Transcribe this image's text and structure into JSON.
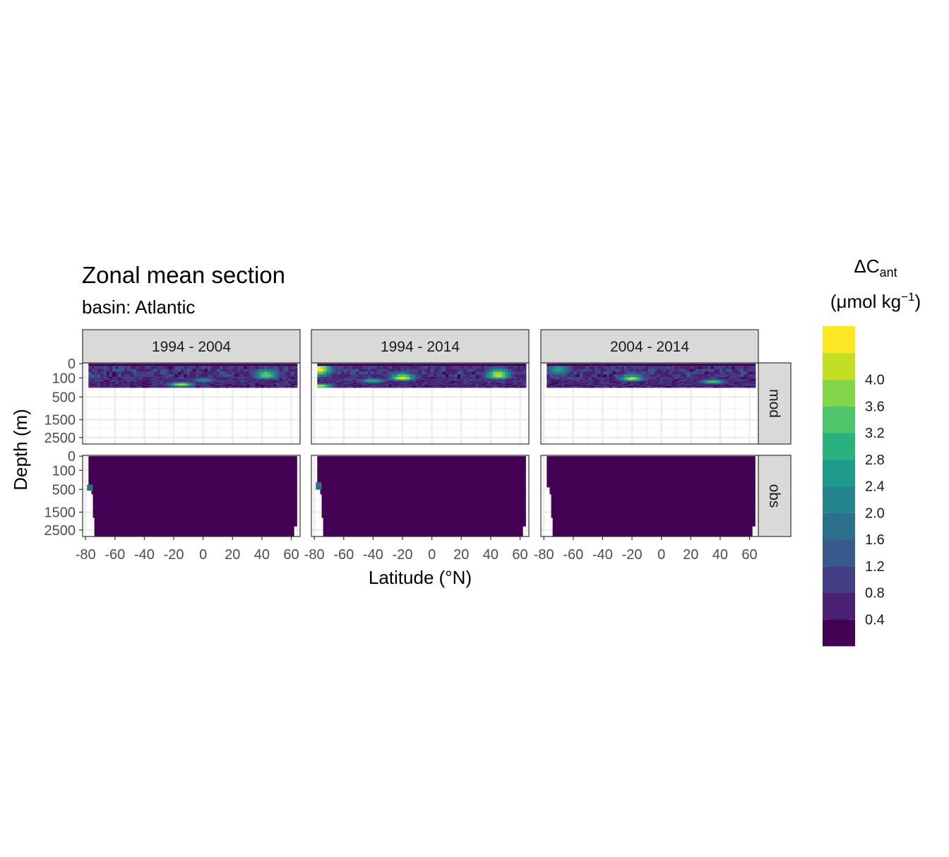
{
  "chart_data": {
    "type": "heatmap",
    "title": "Zonal mean section",
    "subtitle": "basin: Atlantic",
    "xlabel": "Latitude (°N)",
    "ylabel": "Depth (m)",
    "xlim": [
      -82,
      66
    ],
    "x_ticks": [
      -80,
      -60,
      -40,
      -20,
      0,
      20,
      40,
      60
    ],
    "x_tick_labels": [
      "-80",
      "-60",
      "-40",
      "-20",
      "0",
      "20",
      "40",
      "60"
    ],
    "y_ticks": [
      0,
      100,
      500,
      1500,
      2500
    ],
    "y_tick_labels": [
      "0",
      "100",
      "500",
      "1500",
      "2500"
    ],
    "y_reversed": true,
    "column_facets": [
      "1994 - 2004",
      "1994 - 2014",
      "2004 - 2014"
    ],
    "row_facets": [
      "mod",
      "obs"
    ],
    "grid": true,
    "colorbar": {
      "title_main": "ΔC",
      "title_sub": "ant",
      "unit_open": "(μmol kg",
      "unit_sup": "−1",
      "unit_close": ")",
      "levels": [
        {
          "color": "#440154",
          "label": "0.4"
        },
        {
          "color": "#482173",
          "label": "0.8"
        },
        {
          "color": "#433E85",
          "label": "1.2"
        },
        {
          "color": "#38598C",
          "label": "1.6"
        },
        {
          "color": "#2D708E",
          "label": "2.0"
        },
        {
          "color": "#25858E",
          "label": "2.4"
        },
        {
          "color": "#1E9B8A",
          "label": "2.8"
        },
        {
          "color": "#2BB07F",
          "label": "3.2"
        },
        {
          "color": "#51C56A",
          "label": "3.6"
        },
        {
          "color": "#85D54A",
          "label": "4.0"
        },
        {
          "color": "#C2DF23",
          "label": ""
        },
        {
          "color": "#FDE725",
          "label": ""
        }
      ]
    },
    "panels": [
      {
        "col": 0,
        "row": "mod",
        "data_depth_max": 300,
        "data_lat_min": -78,
        "data_lat_max": 64,
        "hotspots": [
          {
            "lat": -15,
            "depth": 240,
            "level": 10
          },
          {
            "lat": 43,
            "depth": 80,
            "level": 8
          },
          {
            "lat": 0,
            "depth": 150,
            "level": 5
          }
        ]
      },
      {
        "col": 1,
        "row": "mod",
        "data_depth_max": 300,
        "data_lat_min": -78,
        "data_lat_max": 64,
        "hotspots": [
          {
            "lat": -76,
            "depth": 40,
            "level": 11
          },
          {
            "lat": -20,
            "depth": 110,
            "level": 11
          },
          {
            "lat": 45,
            "depth": 80,
            "level": 10
          },
          {
            "lat": -76,
            "depth": 270,
            "level": 10
          },
          {
            "lat": -40,
            "depth": 160,
            "level": 7
          }
        ]
      },
      {
        "col": 2,
        "row": "mod",
        "data_depth_max": 300,
        "data_lat_min": -78,
        "data_lat_max": 64,
        "hotspots": [
          {
            "lat": -20,
            "depth": 120,
            "level": 10
          },
          {
            "lat": 35,
            "depth": 180,
            "level": 8
          },
          {
            "lat": -70,
            "depth": 40,
            "level": 6
          }
        ]
      },
      {
        "col": 0,
        "row": "obs",
        "data_depth_max": 3000,
        "data_lat_min": -78,
        "data_lat_max": 64,
        "hotspots": [
          {
            "lat": -77,
            "depth": 500,
            "level": 4
          }
        ]
      },
      {
        "col": 1,
        "row": "obs",
        "data_depth_max": 3000,
        "data_lat_min": -78,
        "data_lat_max": 64,
        "hotspots": [
          {
            "lat": -77,
            "depth": 450,
            "level": 4
          }
        ]
      },
      {
        "col": 2,
        "row": "obs",
        "data_depth_max": 3000,
        "data_lat_min": -78,
        "data_lat_max": 64,
        "hotspots": []
      }
    ]
  }
}
